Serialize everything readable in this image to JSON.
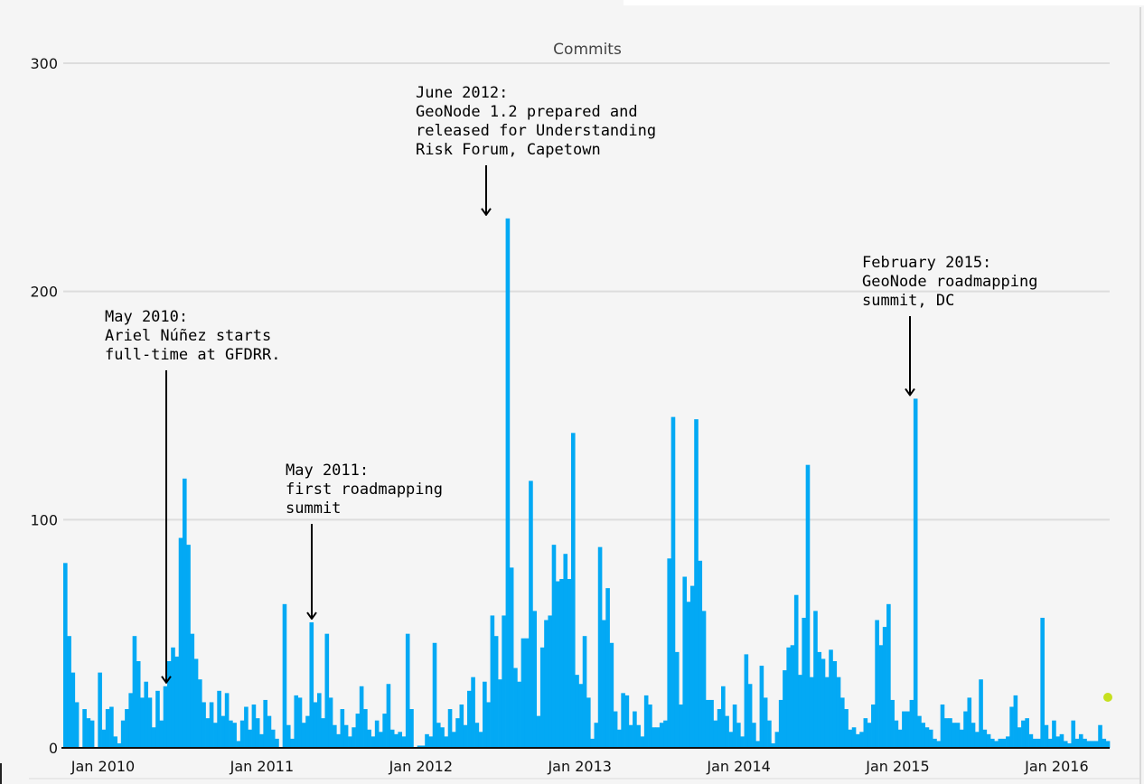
{
  "chart_data": {
    "type": "bar",
    "title": "Commits",
    "xlabel": "",
    "ylabel": "",
    "ylim": [
      0,
      300
    ],
    "yticks": [
      0,
      100,
      200,
      300
    ],
    "grid": true,
    "legend": "none",
    "bar_color": "#03a9f4",
    "x_tick_labels": [
      "Jan 2010",
      "Jan 2011",
      "Jan 2012",
      "Jan 2013",
      "Jan 2014",
      "Jan 2015",
      "Jan 2016"
    ],
    "x_start": "2009-10",
    "x_end": "2016-05",
    "weekly_commits": [
      81,
      49,
      33,
      20,
      0,
      17,
      13,
      12,
      0,
      33,
      8,
      17,
      18,
      5,
      2,
      12,
      17,
      24,
      49,
      38,
      22,
      29,
      22,
      9,
      25,
      12,
      27,
      38,
      44,
      40,
      92,
      118,
      89,
      50,
      39,
      30,
      20,
      13,
      20,
      11,
      25,
      14,
      24,
      12,
      11,
      3,
      12,
      18,
      8,
      19,
      13,
      6,
      21,
      14,
      8,
      4,
      0,
      63,
      10,
      4,
      23,
      22,
      11,
      14,
      55,
      20,
      24,
      13,
      50,
      22,
      10,
      6,
      17,
      10,
      5,
      9,
      15,
      27,
      17,
      8,
      5,
      12,
      7,
      15,
      28,
      8,
      6,
      7,
      5,
      50,
      17,
      0,
      1,
      1,
      6,
      5,
      46,
      11,
      9,
      5,
      17,
      7,
      13,
      19,
      10,
      25,
      31,
      11,
      7,
      29,
      20,
      58,
      49,
      30,
      58,
      232,
      79,
      35,
      29,
      48,
      48,
      117,
      60,
      14,
      44,
      56,
      58,
      89,
      73,
      74,
      85,
      74,
      138,
      32,
      28,
      49,
      22,
      4,
      11,
      88,
      56,
      70,
      46,
      16,
      8,
      24,
      23,
      10,
      16,
      10,
      5,
      23,
      19,
      9,
      9,
      11,
      12,
      83,
      145,
      42,
      19,
      75,
      64,
      71,
      144,
      82,
      60,
      21,
      21,
      12,
      17,
      27,
      14,
      7,
      19,
      11,
      5,
      41,
      28,
      11,
      3,
      36,
      22,
      12,
      2,
      7,
      21,
      34,
      44,
      45,
      67,
      32,
      57,
      124,
      31,
      60,
      42,
      39,
      31,
      43,
      38,
      31,
      22,
      17,
      8,
      9,
      6,
      7,
      13,
      11,
      19,
      56,
      45,
      53,
      63,
      21,
      12,
      8,
      16,
      16,
      21,
      153,
      14,
      11,
      9,
      8,
      4,
      3,
      19,
      13,
      13,
      11,
      11,
      8,
      16,
      22,
      11,
      7,
      30,
      8,
      6,
      4,
      3,
      4,
      4,
      5,
      18,
      23,
      9,
      12,
      13,
      6,
      4,
      4,
      57,
      10,
      4,
      12,
      5,
      6,
      3,
      2,
      12,
      4,
      6,
      4,
      3,
      3,
      3,
      10,
      4,
      3
    ]
  },
  "annotations": [
    {
      "date": "2010-05",
      "value": 27,
      "lines": [
        "May 2010:",
        "Ariel Núñez starts",
        "full-time at GFDRR."
      ]
    },
    {
      "date": "2011-05",
      "value": 55,
      "lines": [
        "May 2011:",
        "first roadmapping",
        "summit"
      ]
    },
    {
      "date": "2012-06",
      "value": 232,
      "lines": [
        "June 2012:",
        "GeoNode 1.2 prepared and",
        "released for Understanding",
        "Risk Forum, Capetown"
      ]
    },
    {
      "date": "2015-02",
      "value": 153,
      "lines": [
        "February 2015:",
        "GeoNode roadmapping",
        "summit, DC"
      ]
    }
  ],
  "colors": {
    "background": "#f5f5f5",
    "grid": "#dddddd",
    "bar": "#03a9f4",
    "axis": "#111111",
    "marker": "#c6e01f"
  }
}
